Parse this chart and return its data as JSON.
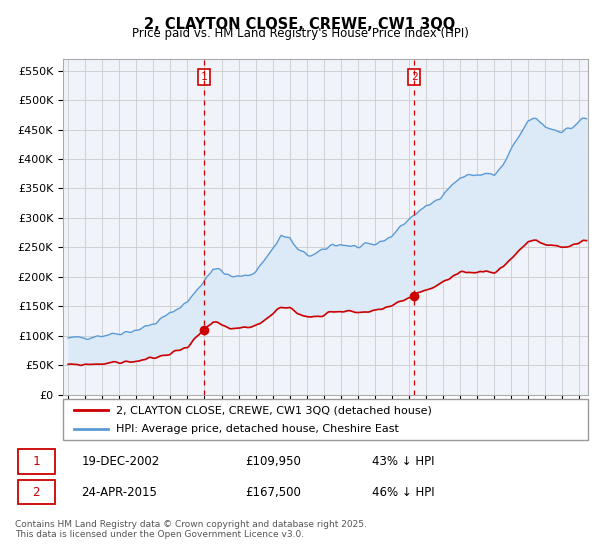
{
  "title": "2, CLAYTON CLOSE, CREWE, CW1 3QQ",
  "subtitle": "Price paid vs. HM Land Registry's House Price Index (HPI)",
  "ylabel_ticks": [
    "£0",
    "£50K",
    "£100K",
    "£150K",
    "£200K",
    "£250K",
    "£300K",
    "£350K",
    "£400K",
    "£450K",
    "£500K",
    "£550K"
  ],
  "ylim": [
    0,
    570000
  ],
  "xlim_start": 1994.7,
  "xlim_end": 2025.5,
  "hpi_color": "#5b9bd5",
  "hpi_fill_color": "#dce9f7",
  "price_color": "#cc0000",
  "vline_color": "#cc0000",
  "background_color": "#f0f4fa",
  "grid_color": "#cccccc",
  "legend_label_price": "2, CLAYTON CLOSE, CREWE, CW1 3QQ (detached house)",
  "legend_label_hpi": "HPI: Average price, detached house, Cheshire East",
  "sale1_date": "19-DEC-2002",
  "sale1_price": "£109,950",
  "sale1_discount": "43% ↓ HPI",
  "sale1_year": 2002.96,
  "sale1_value": 109950,
  "sale2_date": "24-APR-2015",
  "sale2_price": "£167,500",
  "sale2_discount": "46% ↓ HPI",
  "sale2_year": 2015.31,
  "sale2_value": 167500,
  "footnote": "Contains HM Land Registry data © Crown copyright and database right 2025.\nThis data is licensed under the Open Government Licence v3.0."
}
